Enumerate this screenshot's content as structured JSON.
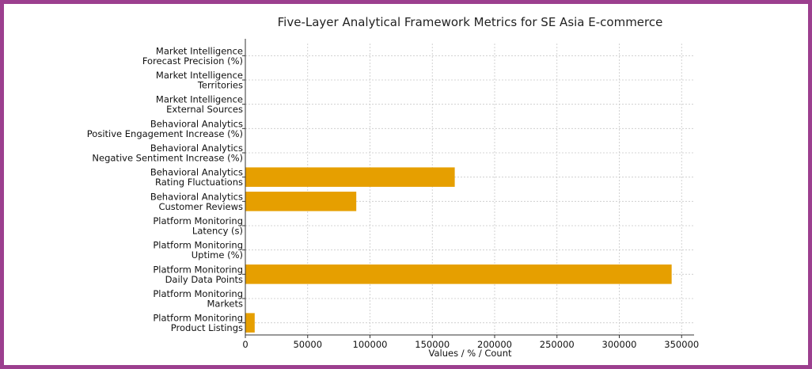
{
  "chart_data": {
    "type": "bar",
    "orientation": "horizontal",
    "title": "Five-Layer Analytical Framework Metrics for SE Asia E-commerce",
    "xlabel": "Values / % / Count",
    "ylabel": "",
    "xlim": [
      0,
      360000
    ],
    "xticks": [
      "0",
      "50000",
      "100000",
      "150000",
      "200000",
      "250000",
      "300000",
      "350000"
    ],
    "grid": true,
    "color": "#e69f00",
    "categories": [
      [
        "Market Intelligence",
        "Forecast Precision (%)"
      ],
      [
        "Market Intelligence",
        "Territories"
      ],
      [
        "Market Intelligence",
        "External Sources"
      ],
      [
        "Behavioral Analytics",
        "Positive Engagement Increase (%)"
      ],
      [
        "Behavioral Analytics",
        "Negative Sentiment Increase (%)"
      ],
      [
        "Behavioral Analytics",
        "Rating Fluctuations"
      ],
      [
        "Behavioral Analytics",
        "Customer Reviews"
      ],
      [
        "Platform Monitoring",
        "Latency (s)"
      ],
      [
        "Platform Monitoring",
        "Uptime (%)"
      ],
      [
        "Platform Monitoring",
        "Daily Data Points"
      ],
      [
        "Platform Monitoring",
        "Markets"
      ],
      [
        "Platform Monitoring",
        "Product Listings"
      ]
    ],
    "values": [
      85,
      12,
      50,
      15,
      10,
      168000,
      89000,
      2,
      99.9,
      342000,
      10,
      7500
    ]
  }
}
